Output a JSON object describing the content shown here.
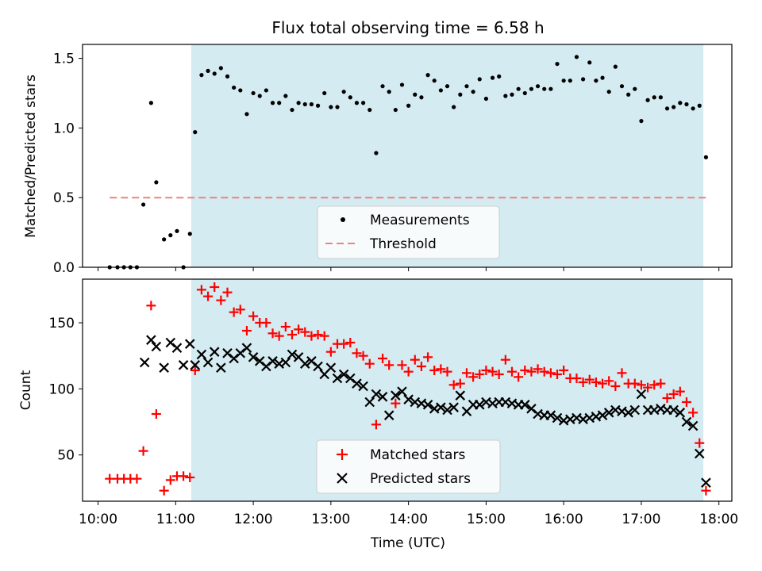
{
  "title": "Flux total observing time = 6.58 h",
  "xlabel": "Time (UTC)",
  "colors": {
    "observing_span": "#d4ebf1",
    "measurements": "#000000",
    "threshold": "#f08080",
    "matched": "#ff0000",
    "predicted": "#000000"
  },
  "chart_data": [
    {
      "type": "scatter",
      "ylabel": "Matched/Predicted stars",
      "xlim": [
        "09:48",
        "18:10"
      ],
      "ylim": [
        0,
        1.6
      ],
      "yticks": [
        "0.0",
        "0.5",
        "1.0",
        "1.5"
      ],
      "shaded_span": [
        "11:12",
        "17:48"
      ],
      "legend": {
        "placement": "lower-center",
        "entries": [
          "Measurements",
          "Threshold"
        ]
      },
      "threshold": {
        "y": 0.5,
        "x": [
          "10:09",
          "17:50"
        ]
      },
      "series": [
        {
          "name": "Measurements",
          "marker": "dot",
          "x": [
            "10:09",
            "10:15",
            "10:20",
            "10:25",
            "10:30",
            "10:35",
            "10:41",
            "10:45",
            "10:51",
            "10:56",
            "11:01",
            "11:06",
            "11:11",
            "11:15",
            "11:20",
            "11:25",
            "11:30",
            "11:35",
            "11:40",
            "11:45",
            "11:50",
            "11:55",
            "12:00",
            "12:05",
            "12:10",
            "12:15",
            "12:20",
            "12:25",
            "12:30",
            "12:35",
            "12:40",
            "12:45",
            "12:50",
            "12:55",
            "13:00",
            "13:05",
            "13:10",
            "13:15",
            "13:20",
            "13:25",
            "13:30",
            "13:35",
            "13:40",
            "13:45",
            "13:50",
            "13:55",
            "14:00",
            "14:05",
            "14:10",
            "14:15",
            "14:20",
            "14:25",
            "14:30",
            "14:35",
            "14:40",
            "14:45",
            "14:50",
            "14:55",
            "15:00",
            "15:05",
            "15:10",
            "15:15",
            "15:20",
            "15:25",
            "15:30",
            "15:35",
            "15:40",
            "15:45",
            "15:50",
            "15:55",
            "16:00",
            "16:05",
            "16:10",
            "16:15",
            "16:20",
            "16:25",
            "16:30",
            "16:35",
            "16:40",
            "16:45",
            "16:50",
            "16:55",
            "17:00",
            "17:05",
            "17:10",
            "17:15",
            "17:20",
            "17:25",
            "17:30",
            "17:35",
            "17:40",
            "17:45",
            "17:50"
          ],
          "y": [
            0.0,
            0.0,
            0.0,
            0.0,
            0.0,
            0.45,
            1.18,
            0.61,
            0.2,
            0.23,
            0.26,
            0.0,
            0.24,
            0.97,
            1.38,
            1.41,
            1.39,
            1.43,
            1.37,
            1.29,
            1.27,
            1.1,
            1.25,
            1.23,
            1.27,
            1.18,
            1.18,
            1.23,
            1.13,
            1.18,
            1.17,
            1.17,
            1.16,
            1.25,
            1.15,
            1.15,
            1.26,
            1.22,
            1.18,
            1.18,
            1.13,
            0.82,
            1.3,
            1.26,
            1.13,
            1.31,
            1.16,
            1.24,
            1.22,
            1.38,
            1.34,
            1.27,
            1.3,
            1.15,
            1.24,
            1.3,
            1.26,
            1.35,
            1.21,
            1.36,
            1.37,
            1.23,
            1.24,
            1.28,
            1.25,
            1.28,
            1.3,
            1.28,
            1.28,
            1.46,
            1.34,
            1.34,
            1.51,
            1.35,
            1.47,
            1.34,
            1.36,
            1.26,
            1.44,
            1.3,
            1.24,
            1.28,
            1.05,
            1.2,
            1.22,
            1.22,
            1.14,
            1.15,
            1.18,
            1.17,
            1.14,
            1.16,
            0.79
          ]
        }
      ]
    },
    {
      "type": "scatter",
      "ylabel": "Count",
      "xlim": [
        "09:48",
        "18:10"
      ],
      "ylim": [
        15,
        183
      ],
      "yticks": [
        "50",
        "100",
        "150"
      ],
      "xticks": [
        "10:00",
        "11:00",
        "12:00",
        "13:00",
        "14:00",
        "15:00",
        "16:00",
        "17:00",
        "18:00"
      ],
      "shaded_span": [
        "11:12",
        "17:48"
      ],
      "legend": {
        "placement": "lower-center",
        "entries": [
          "Matched stars",
          "Predicted stars"
        ]
      },
      "series": [
        {
          "name": "Matched stars",
          "marker": "plus",
          "x": [
            "10:09",
            "10:15",
            "10:20",
            "10:25",
            "10:30",
            "10:35",
            "10:41",
            "10:45",
            "10:51",
            "10:56",
            "11:01",
            "11:06",
            "11:11",
            "11:15",
            "11:20",
            "11:25",
            "11:30",
            "11:35",
            "11:40",
            "11:45",
            "11:50",
            "11:55",
            "12:00",
            "12:05",
            "12:10",
            "12:15",
            "12:20",
            "12:25",
            "12:30",
            "12:35",
            "12:40",
            "12:45",
            "12:50",
            "12:55",
            "13:00",
            "13:05",
            "13:10",
            "13:15",
            "13:20",
            "13:25",
            "13:30",
            "13:35",
            "13:40",
            "13:45",
            "13:50",
            "13:55",
            "14:00",
            "14:05",
            "14:10",
            "14:15",
            "14:20",
            "14:25",
            "14:30",
            "14:35",
            "14:40",
            "14:45",
            "14:50",
            "14:55",
            "15:00",
            "15:05",
            "15:10",
            "15:15",
            "15:20",
            "15:25",
            "15:30",
            "15:35",
            "15:40",
            "15:45",
            "15:50",
            "15:55",
            "16:00",
            "16:05",
            "16:10",
            "16:15",
            "16:20",
            "16:25",
            "16:30",
            "16:35",
            "16:40",
            "16:45",
            "16:50",
            "16:55",
            "17:00",
            "17:05",
            "17:10",
            "17:15",
            "17:20",
            "17:25",
            "17:30",
            "17:35",
            "17:40",
            "17:45",
            "17:50"
          ],
          "y": [
            32,
            32,
            32,
            32,
            32,
            53,
            163,
            81,
            23,
            31,
            34,
            34,
            33,
            114,
            175,
            170,
            177,
            167,
            173,
            158,
            160,
            144,
            155,
            150,
            150,
            142,
            140,
            147,
            141,
            145,
            143,
            140,
            141,
            140,
            128,
            134,
            134,
            135,
            127,
            125,
            119,
            73,
            123,
            118,
            89,
            118,
            113,
            122,
            117,
            124,
            114,
            115,
            113,
            103,
            104,
            112,
            109,
            111,
            114,
            113,
            111,
            122,
            113,
            109,
            114,
            113,
            115,
            113,
            112,
            111,
            114,
            108,
            108,
            105,
            107,
            105,
            104,
            106,
            102,
            112,
            104,
            104,
            103,
            101,
            103,
            104,
            93,
            96,
            98,
            90,
            82,
            59,
            23
          ]
        },
        {
          "name": "Predicted stars",
          "marker": "x",
          "x": [
            "10:56",
            "11:01",
            "11:06",
            "11:11",
            "11:15",
            "11:20",
            "11:25",
            "11:30",
            "11:35",
            "11:40",
            "11:45",
            "11:50",
            "11:55",
            "12:00",
            "12:05",
            "12:10",
            "12:15",
            "12:20",
            "12:25",
            "12:30",
            "12:35",
            "12:40",
            "12:45",
            "12:50",
            "12:55",
            "13:00",
            "13:05",
            "13:10",
            "13:15",
            "13:20",
            "13:25",
            "13:30",
            "13:35",
            "13:40",
            "13:45",
            "13:50",
            "13:55",
            "14:00",
            "14:05",
            "14:10",
            "14:15",
            "14:20",
            "14:25",
            "14:30",
            "14:35",
            "14:40",
            "14:45",
            "14:50",
            "14:55",
            "15:00",
            "15:05",
            "15:10",
            "15:15",
            "15:20",
            "15:25",
            "15:30",
            "15:35",
            "15:40",
            "15:45",
            "15:50",
            "15:55",
            "16:00",
            "16:05",
            "16:10",
            "16:15",
            "16:20",
            "16:25",
            "16:30",
            "16:35",
            "16:40",
            "16:45",
            "16:50",
            "16:55",
            "17:00",
            "17:05",
            "17:10",
            "17:15",
            "17:20",
            "17:25",
            "17:30",
            "17:35",
            "17:40",
            "17:45",
            "17:50",
            "10:36",
            "10:41",
            "10:45",
            "10:51"
          ],
          "y": [
            135,
            131,
            118,
            134,
            118,
            126,
            120,
            128,
            116,
            127,
            123,
            127,
            131,
            124,
            121,
            117,
            121,
            119,
            120,
            126,
            124,
            119,
            121,
            117,
            111,
            116,
            108,
            111,
            108,
            104,
            102,
            90,
            96,
            94,
            80,
            95,
            98,
            92,
            90,
            89,
            88,
            85,
            86,
            84,
            86,
            95,
            83,
            88,
            88,
            90,
            89,
            90,
            90,
            89,
            88,
            88,
            85,
            81,
            80,
            80,
            78,
            76,
            77,
            78,
            77,
            78,
            79,
            80,
            82,
            84,
            83,
            82,
            84,
            96,
            84,
            84,
            85,
            84,
            84,
            82,
            75,
            72,
            51,
            29,
            120,
            137,
            132,
            116
          ]
        }
      ]
    }
  ]
}
